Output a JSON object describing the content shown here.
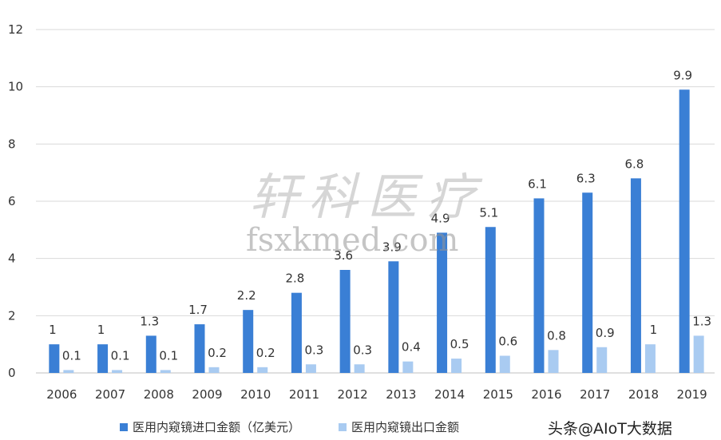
{
  "chart_data": {
    "type": "bar",
    "categories": [
      "2006",
      "2007",
      "2008",
      "2009",
      "2010",
      "2011",
      "2012",
      "2013",
      "2014",
      "2015",
      "2016",
      "2017",
      "2018",
      "2019"
    ],
    "series": [
      {
        "name": "医用内窥镜进口金额（亿美元）",
        "values": [
          1,
          1,
          1.3,
          1.7,
          2.2,
          2.8,
          3.6,
          3.9,
          4.9,
          5.1,
          6.1,
          6.3,
          6.8,
          9.9
        ],
        "color": "#3a7fd5"
      },
      {
        "name": "医用内窥镜出口金额（亿美元）",
        "values": [
          0.1,
          0.1,
          0.1,
          0.2,
          0.2,
          0.3,
          0.3,
          0.4,
          0.5,
          0.6,
          0.8,
          0.9,
          1,
          1.3
        ],
        "color": "#a9cbf1"
      }
    ],
    "y_ticks": [
      "0",
      "2",
      "4",
      "6",
      "8",
      "10",
      "12"
    ],
    "ylim": [
      0,
      12
    ],
    "grid": true,
    "legend_position": "bottom"
  },
  "legend": {
    "import_label": "医用内窥镜进口金额（亿美元）",
    "export_label": "医用内窥镜出口金额"
  },
  "watermark": {
    "brand_cn": "轩科医疗",
    "url": "fsxkmed.com",
    "source": "头条@AIoT大数据"
  }
}
